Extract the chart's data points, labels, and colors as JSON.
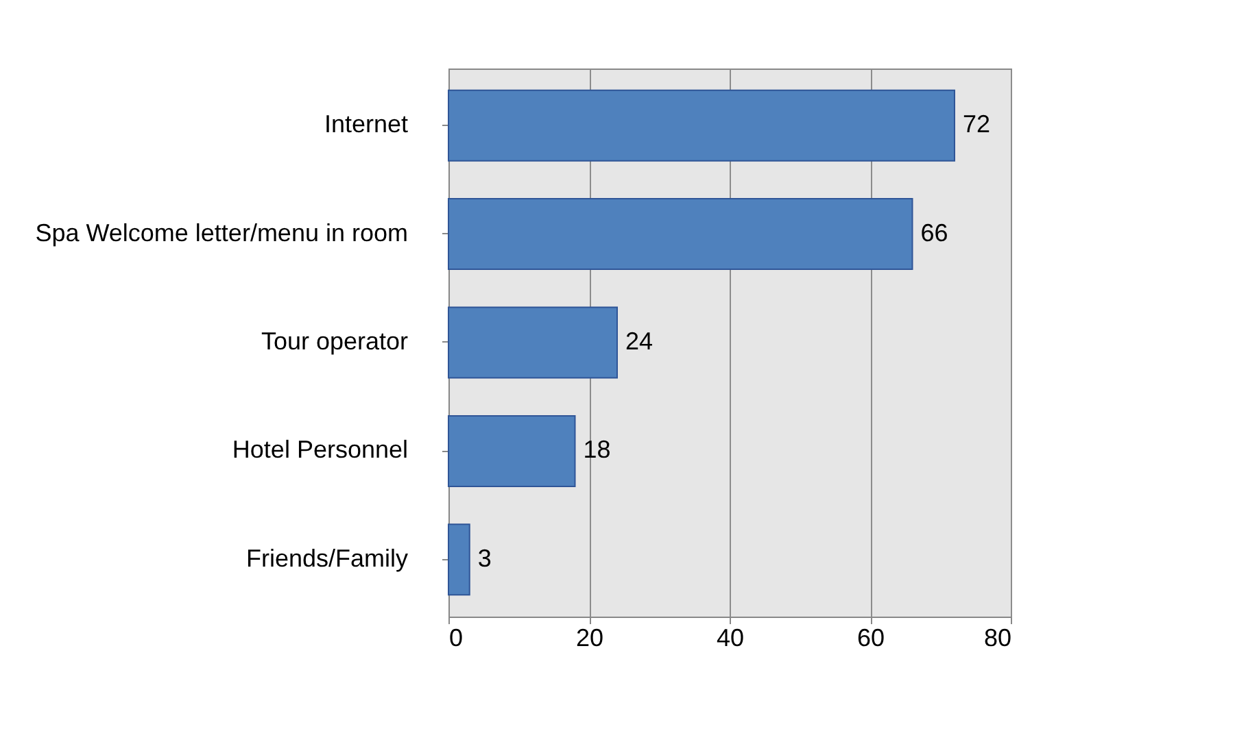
{
  "chart_data": {
    "type": "bar",
    "orientation": "horizontal",
    "categories": [
      "Internet",
      "Spa Welcome letter/menu in room",
      "Tour operator",
      "Hotel Personnel",
      "Friends/Family"
    ],
    "values": [
      72,
      66,
      24,
      18,
      3
    ],
    "color": "#4f81bd",
    "xlim": [
      0,
      80
    ],
    "xticks": [
      0,
      20,
      40,
      60,
      80
    ],
    "grid": "x",
    "data_labels": true
  }
}
